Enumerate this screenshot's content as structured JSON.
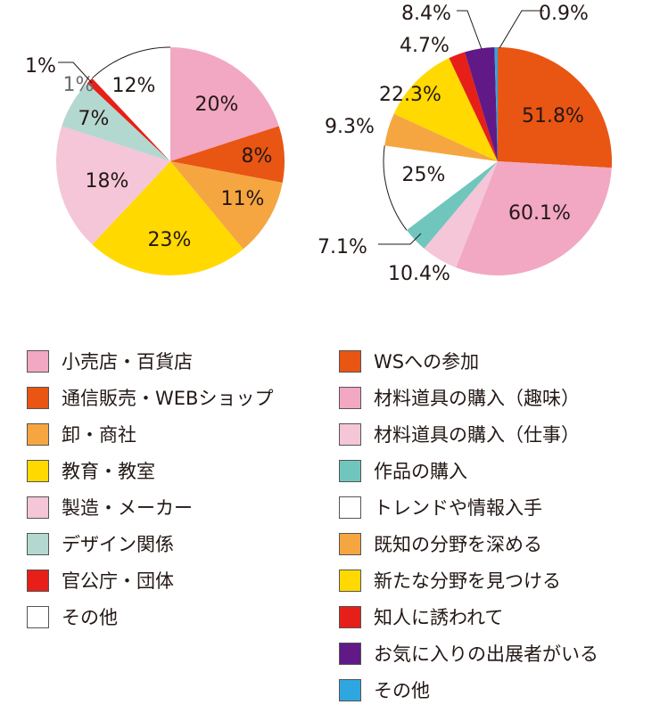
{
  "chart_data": [
    {
      "type": "pie",
      "start": "12 o'clock",
      "direction": "clockwise",
      "slices": [
        {
          "label": "小売店・百貨店",
          "value": 20,
          "text": "20%",
          "color": "#F2A7C3"
        },
        {
          "label": "通信販売・WEBショップ",
          "value": 8,
          "text": "8%",
          "color": "#E95513"
        },
        {
          "label": "卸・商社",
          "value": 11,
          "text": "11%",
          "color": "#F5A641"
        },
        {
          "label": "教育・教室",
          "value": 23,
          "text": "23%",
          "color": "#FFD900"
        },
        {
          "label": "製造・メーカー",
          "value": 18,
          "text": "18%",
          "color": "#F4C6D7"
        },
        {
          "label": "デザイン関係",
          "value": 7,
          "text": "7%",
          "color": "#B3D8CF"
        },
        {
          "label": "官公庁・団体",
          "value": 1,
          "text": "1%",
          "color": "#E61F19"
        },
        {
          "label": "その他",
          "value": 12,
          "text": "12%",
          "color": "#FFFFFF"
        }
      ],
      "extra_label": "1%"
    },
    {
      "type": "pie",
      "start": "12 o'clock",
      "direction": "clockwise",
      "slices": [
        {
          "label": "WSへの参加",
          "value": 51.8,
          "text": "51.8%",
          "color": "#E95513"
        },
        {
          "label": "材料道具の購入（趣味）",
          "value": 60.1,
          "text": "60.1%",
          "color": "#F2A7C3"
        },
        {
          "label": "材料道具の購入（仕事）",
          "value": 10.4,
          "text": "10.4%",
          "color": "#F4C6D7"
        },
        {
          "label": "作品の購入",
          "value": 7.1,
          "text": "7.1%",
          "color": "#70C6BC"
        },
        {
          "label": "トレンドや情報入手",
          "value": 25,
          "text": "25%",
          "color": "#FFFFFF"
        },
        {
          "label": "既知の分野を深める",
          "value": 9.3,
          "text": "9.3%",
          "color": "#F5A641"
        },
        {
          "label": "新たな分野を見つける",
          "value": 22.3,
          "text": "22.3%",
          "color": "#FFD900"
        },
        {
          "label": "知人に誘われて",
          "value": 4.7,
          "text": "4.7%",
          "color": "#E61F19"
        },
        {
          "label": "お気に入りの出展者がいる",
          "value": 8.4,
          "text": "8.4%",
          "color": "#601986"
        },
        {
          "label": "その他",
          "value": 0.9,
          "text": "0.9%",
          "color": "#2EA7E0"
        }
      ]
    }
  ]
}
